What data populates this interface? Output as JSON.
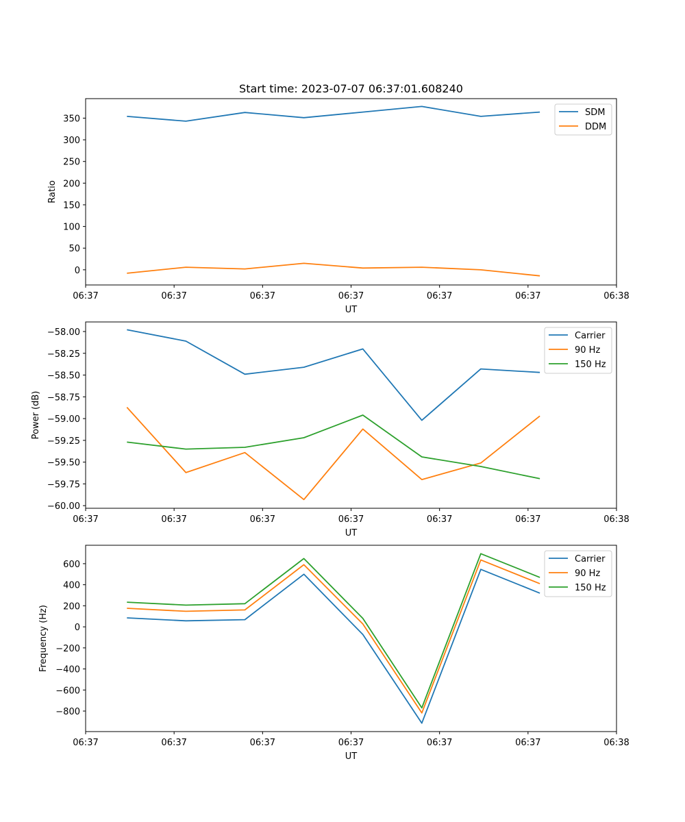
{
  "chart_data": [
    {
      "type": "line",
      "title": "Start time: 2023-07-07 06:37:01.608240",
      "xlabel": "UT",
      "ylabel": "Ratio",
      "xlim": [
        0,
        9
      ],
      "ylim": [
        -35,
        395
      ],
      "xticks": [
        0.0,
        1.5,
        3.0,
        4.5,
        6.0,
        7.5,
        9.0
      ],
      "xtick_labels": [
        "06:37",
        "06:37",
        "06:37",
        "06:37",
        "06:37",
        "06:37",
        "06:38"
      ],
      "yticks": [
        0,
        50,
        100,
        150,
        200,
        250,
        300,
        350
      ],
      "ytick_labels": [
        "0",
        "50",
        "100",
        "150",
        "200",
        "250",
        "300",
        "350"
      ],
      "legend_position": "top-right",
      "x": [
        0.7,
        1.7,
        2.7,
        3.7,
        4.7,
        5.7,
        6.7,
        7.7
      ],
      "series": [
        {
          "name": "SDM",
          "color": "#1f77b4",
          "values": [
            354,
            343,
            363,
            351,
            364,
            377,
            354,
            364
          ]
        },
        {
          "name": "DDM",
          "color": "#ff7f0e",
          "values": [
            -8,
            6,
            2,
            15,
            4,
            6,
            0,
            -14
          ]
        }
      ]
    },
    {
      "type": "line",
      "title": "",
      "xlabel": "UT",
      "ylabel": "Power (dB)",
      "xlim": [
        0,
        9
      ],
      "ylim": [
        -60.03,
        -57.89
      ],
      "xticks": [
        0.0,
        1.5,
        3.0,
        4.5,
        6.0,
        7.5,
        9.0
      ],
      "xtick_labels": [
        "06:37",
        "06:37",
        "06:37",
        "06:37",
        "06:37",
        "06:37",
        "06:38"
      ],
      "yticks": [
        -60.0,
        -59.75,
        -59.5,
        -59.25,
        -59.0,
        -58.75,
        -58.5,
        -58.25,
        -58.0
      ],
      "ytick_labels": [
        "−60.00",
        "−59.75",
        "−59.50",
        "−59.25",
        "−59.00",
        "−58.75",
        "−58.50",
        "−58.25",
        "−58.00"
      ],
      "legend_position": "top-right",
      "x": [
        0.7,
        1.7,
        2.7,
        3.7,
        4.7,
        5.7,
        6.7,
        7.7
      ],
      "series": [
        {
          "name": "Carrier",
          "color": "#1f77b4",
          "values": [
            -57.98,
            -58.11,
            -58.49,
            -58.41,
            -58.2,
            -59.02,
            -58.43,
            -58.47
          ]
        },
        {
          "name": "90 Hz",
          "color": "#ff7f0e",
          "values": [
            -58.87,
            -59.62,
            -59.39,
            -59.93,
            -59.12,
            -59.7,
            -59.51,
            -58.97
          ]
        },
        {
          "name": "150 Hz",
          "color": "#2ca02c",
          "values": [
            -59.27,
            -59.35,
            -59.33,
            -59.22,
            -58.96,
            -59.44,
            -59.55,
            -59.69
          ]
        }
      ]
    },
    {
      "type": "line",
      "title": "",
      "xlabel": "UT",
      "ylabel": "Frequency (Hz)",
      "xlim": [
        0,
        9
      ],
      "ylim": [
        -995,
        775
      ],
      "xticks": [
        0.0,
        1.5,
        3.0,
        4.5,
        6.0,
        7.5,
        9.0
      ],
      "xtick_labels": [
        "06:37",
        "06:37",
        "06:37",
        "06:37",
        "06:37",
        "06:37",
        "06:38"
      ],
      "yticks": [
        -800,
        -600,
        -400,
        -200,
        0,
        200,
        400,
        600
      ],
      "ytick_labels": [
        "−800",
        "−600",
        "−400",
        "−200",
        "0",
        "200",
        "400",
        "600"
      ],
      "legend_position": "top-right",
      "x": [
        0.7,
        1.7,
        2.7,
        3.7,
        4.7,
        5.7,
        6.7,
        7.7
      ],
      "series": [
        {
          "name": "Carrier",
          "color": "#1f77b4",
          "values": [
            85,
            57,
            68,
            500,
            -73,
            -915,
            546,
            320
          ]
        },
        {
          "name": "90 Hz",
          "color": "#ff7f0e",
          "values": [
            176,
            148,
            161,
            590,
            27,
            -818,
            636,
            410
          ]
        },
        {
          "name": "150 Hz",
          "color": "#2ca02c",
          "values": [
            234,
            206,
            220,
            649,
            80,
            -770,
            695,
            470
          ]
        }
      ]
    }
  ]
}
